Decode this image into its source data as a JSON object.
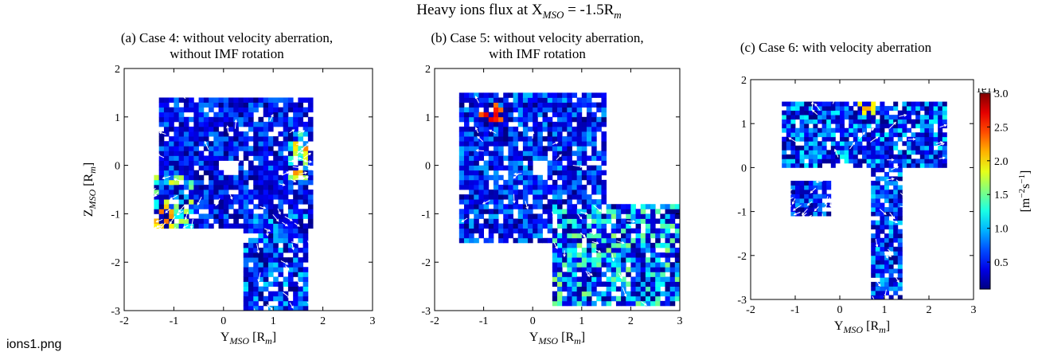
{
  "figure": {
    "suptitle": "Heavy ions flux at X_MSO = -1.5R_m",
    "suptitle_main": "Heavy ions flux at X",
    "suptitle_sub": "MSO",
    "suptitle_tail": " = -1.5R",
    "suptitle_tail_sub": "m",
    "filename": "ions1.png"
  },
  "chart_data": [
    {
      "type": "heatmap",
      "title": [
        "(a) Case 4: without velocity aberration,",
        "without IMF rotation"
      ],
      "xlabel": "Y_MSO [R_m]",
      "ylabel": "Z_MSO [R_m]",
      "xlim": [
        -2,
        3
      ],
      "ylim": [
        -3,
        2
      ],
      "xticks": [
        -2,
        -1,
        0,
        1,
        2,
        3
      ],
      "yticks": [
        -3,
        -2,
        -1,
        0,
        1,
        2
      ],
      "cell_size_Rm": 0.1,
      "quiver": "white arrows showing flux direction",
      "regions": [
        {
          "name": "main-cloud",
          "y_range": [
            -1.3,
            1.8
          ],
          "z_range": [
            -1.3,
            1.45
          ],
          "flux_1e11": 0.7
        },
        {
          "name": "left-arm",
          "y_range": [
            -1.4,
            -0.6
          ],
          "z_range": [
            -1.3,
            -0.2
          ],
          "flux_1e11": 1.5
        },
        {
          "name": "right-hotspot",
          "y_range": [
            1.3,
            1.7
          ],
          "z_range": [
            -0.3,
            0.7
          ],
          "flux_1e11": 2.0
        },
        {
          "name": "tail",
          "y_range": [
            0.4,
            1.7
          ],
          "z_range": [
            -3.0,
            -1.0
          ],
          "flux_1e11": 0.9
        }
      ],
      "peak": {
        "y": -1.2,
        "z": -1.05,
        "flux_1e11": 2.6
      }
    },
    {
      "type": "heatmap",
      "title": [
        "(b) Case 5: without velocity aberration,",
        "with IMF rotation"
      ],
      "xlabel": "Y_MSO [R_m]",
      "ylabel": "",
      "xlim": [
        -2,
        3
      ],
      "ylim": [
        -3,
        2
      ],
      "xticks": [
        -2,
        -1,
        0,
        1,
        2,
        3
      ],
      "yticks": [
        -3,
        -2,
        -1,
        0,
        1,
        2
      ],
      "cell_size_Rm": 0.1,
      "quiver": "white arrows showing flux direction",
      "regions": [
        {
          "name": "main-cloud",
          "y_range": [
            -1.5,
            1.5
          ],
          "z_range": [
            -1.6,
            1.5
          ],
          "flux_1e11": 0.8
        },
        {
          "name": "diagonal-tail",
          "y_range": [
            0.4,
            3.0
          ],
          "z_range": [
            -2.9,
            -0.8
          ],
          "flux_1e11": 1.3
        }
      ],
      "peak": {
        "y": -0.85,
        "z": 1.05,
        "flux_1e11": 3.0
      }
    },
    {
      "type": "heatmap",
      "title": [
        "(c) Case 6: with velocity aberration"
      ],
      "xlabel": "Y_MSO [R_m]",
      "ylabel": "",
      "xlim": [
        -2,
        3
      ],
      "ylim": [
        -3,
        2
      ],
      "xticks": [
        -2,
        -1,
        0,
        1,
        2,
        3
      ],
      "yticks": [
        -3,
        -2,
        -1,
        0,
        1,
        2
      ],
      "cell_size_Rm": 0.1,
      "quiver": "white arrows showing flux direction",
      "regions": [
        {
          "name": "upper-cloud",
          "y_range": [
            -1.3,
            2.4
          ],
          "z_range": [
            0.0,
            1.5
          ],
          "flux_1e11": 1.0
        },
        {
          "name": "left-lobe",
          "y_range": [
            -1.1,
            -0.2
          ],
          "z_range": [
            -1.1,
            -0.3
          ],
          "flux_1e11": 0.8
        },
        {
          "name": "stem",
          "y_range": [
            0.7,
            1.45
          ],
          "z_range": [
            -3.0,
            0.0
          ],
          "flux_1e11": 0.9
        }
      ],
      "peak": {
        "y": 0.6,
        "z": 1.4,
        "flux_1e11": 2.3
      }
    }
  ],
  "colorbar": {
    "exponent_label": "1e11",
    "label": "[m^-2 s^-1]",
    "ticks": [
      0.5,
      1.0,
      1.5,
      2.0,
      2.5,
      3.0
    ],
    "tick_labels": [
      "0.5",
      "1.0",
      "1.5",
      "2.0",
      "2.5",
      "3.0"
    ],
    "range": [
      0.1,
      3.0
    ],
    "colormap": "jet"
  }
}
